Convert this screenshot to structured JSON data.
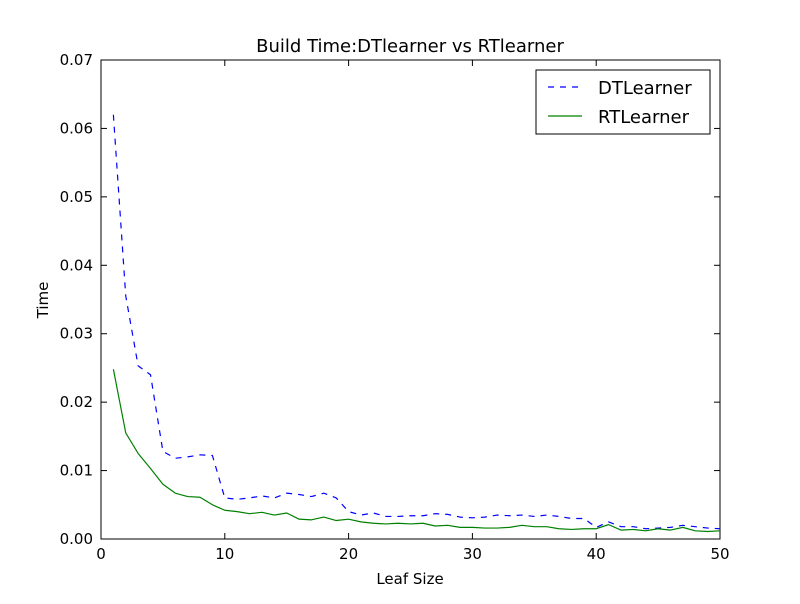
{
  "chart_data": {
    "type": "line",
    "title": "Build Time:DTlearner vs RTlearner",
    "xlabel": "Leaf Size",
    "ylabel": "Time",
    "xlim": [
      0,
      50
    ],
    "ylim": [
      0,
      0.07
    ],
    "xticks": [
      0,
      10,
      20,
      30,
      40,
      50
    ],
    "yticks": [
      0.0,
      0.01,
      0.02,
      0.03,
      0.04,
      0.05,
      0.06,
      0.07
    ],
    "xtick_labels": [
      "0",
      "10",
      "20",
      "30",
      "40",
      "50"
    ],
    "ytick_labels": [
      "0.00",
      "0.01",
      "0.02",
      "0.03",
      "0.04",
      "0.05",
      "0.06",
      "0.07"
    ],
    "grid": false,
    "legend_position": "top-right",
    "x": [
      1,
      2,
      3,
      4,
      5,
      6,
      7,
      8,
      9,
      10,
      11,
      12,
      13,
      14,
      15,
      16,
      17,
      18,
      19,
      20,
      21,
      22,
      23,
      24,
      25,
      26,
      27,
      28,
      29,
      30,
      31,
      32,
      33,
      34,
      35,
      36,
      37,
      38,
      39,
      40,
      41,
      42,
      43,
      44,
      45,
      46,
      47,
      48,
      49,
      50
    ],
    "series": [
      {
        "name": "DTLearner",
        "color": "#0000ff",
        "style": "dashed",
        "values": [
          0.062,
          0.0355,
          0.0253,
          0.024,
          0.0128,
          0.0118,
          0.012,
          0.0123,
          0.0122,
          0.006,
          0.0058,
          0.006,
          0.0063,
          0.006,
          0.0067,
          0.0065,
          0.0062,
          0.0067,
          0.006,
          0.004,
          0.0035,
          0.0038,
          0.0033,
          0.0033,
          0.0034,
          0.0034,
          0.0037,
          0.0036,
          0.0032,
          0.0031,
          0.0032,
          0.0035,
          0.0034,
          0.0035,
          0.0033,
          0.0035,
          0.0033,
          0.003,
          0.003,
          0.0017,
          0.0025,
          0.0018,
          0.0018,
          0.0015,
          0.0016,
          0.0017,
          0.002,
          0.0018,
          0.0016,
          0.0015
        ]
      },
      {
        "name": "RTLearner",
        "color": "#008000",
        "style": "solid",
        "values": [
          0.0248,
          0.0155,
          0.0125,
          0.0103,
          0.008,
          0.0067,
          0.0062,
          0.0061,
          0.005,
          0.0042,
          0.004,
          0.0037,
          0.0039,
          0.0035,
          0.0038,
          0.0029,
          0.0028,
          0.0032,
          0.0027,
          0.0029,
          0.0025,
          0.0023,
          0.0022,
          0.0023,
          0.0022,
          0.0023,
          0.0019,
          0.002,
          0.0017,
          0.0017,
          0.0016,
          0.0016,
          0.0017,
          0.002,
          0.0018,
          0.0018,
          0.0015,
          0.0014,
          0.0015,
          0.0015,
          0.0021,
          0.0013,
          0.0014,
          0.0012,
          0.0015,
          0.0013,
          0.0017,
          0.0012,
          0.0011,
          0.0012
        ]
      }
    ]
  }
}
